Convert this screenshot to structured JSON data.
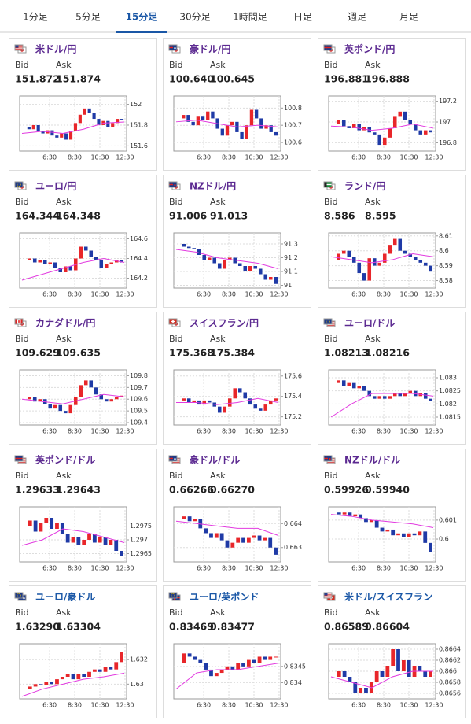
{
  "tabs": [
    "1分足",
    "5分足",
    "15分足",
    "30分足",
    "1時間足",
    "日足",
    "週足",
    "月足"
  ],
  "active_tab": 2,
  "cards": [
    {
      "name": "米ドル/円",
      "flags": [
        "us",
        "jp"
      ],
      "color": "#5c2a91",
      "bid_label": "Bid",
      "ask_label": "Ask",
      "bid": "151.872",
      "ask": "151.874",
      "chart": {
        "type": "candlestick",
        "ylim": [
          151.55,
          152.08
        ],
        "yticks": [
          152,
          151.8,
          151.6
        ],
        "xticks": [
          "6:30",
          "8:30",
          "10:30",
          "12:30"
        ],
        "close": [
          151.78,
          151.76,
          151.8,
          151.74,
          151.72,
          151.75,
          151.7,
          151.68,
          151.72,
          151.66,
          151.74,
          151.82,
          151.9,
          151.96,
          151.92,
          151.86,
          151.8,
          151.84,
          151.78,
          151.82,
          151.86,
          151.85
        ],
        "ma": [
          151.72,
          151.74,
          151.72,
          151.76,
          151.82,
          151.83
        ]
      }
    },
    {
      "name": "豪ドル/円",
      "flags": [
        "au",
        "jp"
      ],
      "color": "#5c2a91",
      "bid_label": "Bid",
      "ask_label": "Ask",
      "bid": "100.640",
      "ask": "100.645",
      "chart": {
        "type": "candlestick",
        "ylim": [
          100.55,
          100.87
        ],
        "yticks": [
          100.8,
          100.7,
          100.6
        ],
        "xticks": [
          "6:30",
          "8:30",
          "10:30",
          "12:30"
        ],
        "close": [
          100.74,
          100.76,
          100.72,
          100.7,
          100.75,
          100.73,
          100.78,
          100.74,
          100.68,
          100.64,
          100.7,
          100.72,
          100.66,
          100.62,
          100.7,
          100.79,
          100.74,
          100.68,
          100.7,
          100.66,
          100.64
        ],
        "ma": [
          100.72,
          100.73,
          100.71,
          100.69,
          100.7,
          100.69
        ]
      }
    },
    {
      "name": "英ポンド/円",
      "flags": [
        "gb",
        "jp"
      ],
      "color": "#5c2a91",
      "bid_label": "Bid",
      "ask_label": "Ask",
      "bid": "196.881",
      "ask": "196.888",
      "chart": {
        "type": "candlestick",
        "ylim": [
          196.72,
          197.25
        ],
        "yticks": [
          197.2,
          197,
          196.8
        ],
        "xticks": [
          "6:30",
          "8:30",
          "10:30",
          "12:30"
        ],
        "close": [
          196.98,
          197.02,
          196.96,
          196.94,
          196.98,
          196.92,
          196.95,
          196.9,
          196.88,
          196.78,
          196.85,
          196.94,
          197.05,
          197.1,
          197.02,
          196.98,
          196.92,
          196.88,
          196.92,
          196.9
        ],
        "ma": [
          196.96,
          196.95,
          196.92,
          196.94,
          196.98,
          196.94
        ]
      }
    },
    {
      "name": "ユーロ/円",
      "flags": [
        "eu",
        "jp"
      ],
      "color": "#5c2a91",
      "bid_label": "Bid",
      "ask_label": "Ask",
      "bid": "164.344",
      "ask": "164.348",
      "chart": {
        "type": "candlestick",
        "ylim": [
          164.1,
          164.66
        ],
        "yticks": [
          164.6,
          164.4,
          164.2
        ],
        "xticks": [
          "6:30",
          "8:30",
          "10:30",
          "12:30"
        ],
        "close": [
          164.38,
          164.4,
          164.36,
          164.38,
          164.34,
          164.36,
          164.3,
          164.26,
          164.32,
          164.28,
          164.4,
          164.52,
          164.48,
          164.42,
          164.38,
          164.3,
          164.34,
          164.36,
          164.38,
          164.36
        ],
        "ma": [
          164.18,
          164.24,
          164.3,
          164.36,
          164.4,
          164.36
        ]
      }
    },
    {
      "name": "NZドル/円",
      "flags": [
        "nz",
        "jp"
      ],
      "color": "#5c2a91",
      "bid_label": "Bid",
      "ask_label": "Ask",
      "bid": "91.006",
      "ask": "91.013",
      "chart": {
        "type": "candlestick",
        "ylim": [
          90.98,
          91.38
        ],
        "yticks": [
          91.3,
          91.2,
          91.1,
          91
        ],
        "xticks": [
          "6:30",
          "8:30",
          "10:30",
          "12:30"
        ],
        "close": [
          91.3,
          91.28,
          91.27,
          91.26,
          91.22,
          91.18,
          91.2,
          91.16,
          91.12,
          91.18,
          91.2,
          91.16,
          91.14,
          91.1,
          91.14,
          91.12,
          91.08,
          91.04,
          91.06,
          91.01
        ],
        "ma": [
          91.26,
          91.24,
          91.2,
          91.18,
          91.16,
          91.12
        ]
      }
    },
    {
      "name": "ランド/円",
      "flags": [
        "za",
        "jp"
      ],
      "color": "#5c2a91",
      "bid_label": "Bid",
      "ask_label": "Ask",
      "bid": "8.586",
      "ask": "8.595",
      "chart": {
        "type": "candlestick",
        "ylim": [
          8.575,
          8.612
        ],
        "yticks": [
          8.61,
          8.6,
          8.59,
          8.58
        ],
        "xticks": [
          "6:30",
          "8:30",
          "10:30",
          "12:30"
        ],
        "close": [
          8.594,
          8.598,
          8.6,
          8.596,
          8.592,
          8.585,
          8.58,
          8.595,
          8.59,
          8.592,
          8.598,
          8.604,
          8.608,
          8.6,
          8.598,
          8.596,
          8.594,
          8.592,
          8.59,
          8.586
        ],
        "ma": [
          8.596,
          8.594,
          8.592,
          8.594,
          8.598,
          8.596
        ]
      }
    },
    {
      "name": "カナダドル/円",
      "flags": [
        "ca",
        "jp"
      ],
      "color": "#5c2a91",
      "bid_label": "Bid",
      "ask_label": "Ask",
      "bid": "109.629",
      "ask": "109.635",
      "chart": {
        "type": "candlestick",
        "ylim": [
          109.38,
          109.85
        ],
        "yticks": [
          109.8,
          109.7,
          109.6,
          109.5,
          109.4
        ],
        "xticks": [
          "6:30",
          "8:30",
          "10:30",
          "12:30"
        ],
        "close": [
          109.6,
          109.62,
          109.58,
          109.6,
          109.56,
          109.52,
          109.55,
          109.5,
          109.48,
          109.55,
          109.62,
          109.72,
          109.76,
          109.7,
          109.64,
          109.6,
          109.58,
          109.6,
          109.62,
          109.63
        ],
        "ma": [
          109.6,
          109.58,
          109.56,
          109.6,
          109.64,
          109.62
        ]
      }
    },
    {
      "name": "スイスフラン/円",
      "flags": [
        "ch",
        "jp"
      ],
      "color": "#5c2a91",
      "bid_label": "Bid",
      "ask_label": "Ask",
      "bid": "175.368",
      "ask": "175.384",
      "chart": {
        "type": "candlestick",
        "ylim": [
          175.12,
          175.66
        ],
        "yticks": [
          175.6,
          175.4,
          175.2
        ],
        "xticks": [
          "6:30",
          "8:30",
          "10:30",
          "12:30"
        ],
        "close": [
          175.36,
          175.38,
          175.34,
          175.36,
          175.32,
          175.36,
          175.34,
          175.3,
          175.24,
          175.3,
          175.38,
          175.48,
          175.44,
          175.38,
          175.32,
          175.28,
          175.26,
          175.32,
          175.36,
          175.38
        ],
        "ma": [
          175.34,
          175.34,
          175.32,
          175.34,
          175.38,
          175.34
        ]
      }
    },
    {
      "name": "ユーロ/ドル",
      "flags": [
        "eu",
        "us"
      ],
      "color": "#5c2a91",
      "bid_label": "Bid",
      "ask_label": "Ask",
      "bid": "1.08213",
      "ask": "1.08216",
      "chart": {
        "type": "candlestick",
        "ylim": [
          1.0812,
          1.0833
        ],
        "yticks": [
          1.083,
          1.0825,
          1.082,
          1.0815
        ],
        "xticks": [
          "6:30",
          "8:30",
          "10:30",
          "12:30"
        ],
        "close": [
          1.0828,
          1.0829,
          1.0827,
          1.0828,
          1.0826,
          1.0827,
          1.0825,
          1.0823,
          1.0822,
          1.0823,
          1.0822,
          1.0823,
          1.0824,
          1.0823,
          1.0824,
          1.0825,
          1.0823,
          1.0824,
          1.0822,
          1.0821
        ],
        "ma": [
          1.0815,
          1.082,
          1.0824,
          1.0824,
          1.0824,
          1.0823
        ]
      }
    },
    {
      "name": "英ポンド/ドル",
      "flags": [
        "gb",
        "us"
      ],
      "color": "#5c2a91",
      "bid_label": "Bid",
      "ask_label": "Ask",
      "bid": "1.29633",
      "ask": "1.29643",
      "chart": {
        "type": "candlestick",
        "ylim": [
          1.2962,
          1.2982
        ],
        "yticks": [
          1.2975,
          1.297,
          1.2965
        ],
        "xticks": [
          "6:30",
          "8:30",
          "10:30",
          "12:30"
        ],
        "close": [
          1.2975,
          1.2977,
          1.2973,
          1.2976,
          1.2978,
          1.2974,
          1.2976,
          1.2972,
          1.2969,
          1.2971,
          1.2968,
          1.297,
          1.2972,
          1.2969,
          1.2971,
          1.2968,
          1.297,
          1.2966,
          1.2964
        ],
        "ma": [
          1.2968,
          1.297,
          1.2974,
          1.2973,
          1.2971,
          1.2969
        ]
      }
    },
    {
      "name": "豪ドル/ドル",
      "flags": [
        "au",
        "us"
      ],
      "color": "#5c2a91",
      "bid_label": "Bid",
      "ask_label": "Ask",
      "bid": "0.66266",
      "ask": "0.66270",
      "chart": {
        "type": "candlestick",
        "ylim": [
          0.6624,
          0.6647
        ],
        "yticks": [
          0.664,
          0.663
        ],
        "xticks": [
          "6:30",
          "8:30",
          "10:30",
          "12:30"
        ],
        "close": [
          0.6642,
          0.6643,
          0.6641,
          0.6642,
          0.6638,
          0.6636,
          0.6634,
          0.6636,
          0.6633,
          0.663,
          0.6632,
          0.6634,
          0.6632,
          0.6634,
          0.6635,
          0.6633,
          0.6634,
          0.663,
          0.6627
        ],
        "ma": [
          0.6641,
          0.664,
          0.6639,
          0.6638,
          0.6638,
          0.6635
        ]
      }
    },
    {
      "name": "NZドル/ドル",
      "flags": [
        "nz",
        "us"
      ],
      "color": "#5c2a91",
      "bid_label": "Bid",
      "ask_label": "Ask",
      "bid": "0.59926",
      "ask": "0.59940",
      "chart": {
        "type": "candlestick",
        "ylim": [
          0.5988,
          0.6017
        ],
        "yticks": [
          0.601,
          0.6
        ],
        "xticks": [
          "6:30",
          "8:30",
          "10:30",
          "12:30"
        ],
        "close": [
          0.6014,
          0.6013,
          0.6014,
          0.6012,
          0.6013,
          0.6011,
          0.6009,
          0.601,
          0.6006,
          0.6004,
          0.6005,
          0.6002,
          0.6003,
          0.6001,
          0.6003,
          0.6002,
          0.6004,
          0.5998,
          0.5993
        ],
        "ma": [
          0.6013,
          0.6012,
          0.601,
          0.6009,
          0.6008,
          0.6006
        ]
      }
    },
    {
      "name": "ユーロ/豪ドル",
      "flags": [
        "eu",
        "au"
      ],
      "color": "#1a57a6",
      "bid_label": "Bid",
      "ask_label": "Ask",
      "bid": "1.63290",
      "ask": "1.63304",
      "chart": {
        "type": "candlestick",
        "ylim": [
          1.6288,
          1.6333
        ],
        "yticks": [
          1.632,
          1.63
        ],
        "xticks": [
          "6:30",
          "8:30",
          "10:30",
          "12:30"
        ],
        "close": [
          1.6296,
          1.6298,
          1.63,
          1.6299,
          1.6302,
          1.63,
          1.6304,
          1.6306,
          1.6308,
          1.6304,
          1.6308,
          1.6306,
          1.631,
          1.6312,
          1.631,
          1.6314,
          1.6312,
          1.6318,
          1.6326
        ],
        "ma": [
          1.629,
          1.6296,
          1.63,
          1.6304,
          1.6306,
          1.6309
        ]
      }
    },
    {
      "name": "ユーロ/英ポンド",
      "flags": [
        "eu",
        "gb"
      ],
      "color": "#1a57a6",
      "bid_label": "Bid",
      "ask_label": "Ask",
      "bid": "0.83469",
      "ask": "0.83477",
      "chart": {
        "type": "candlestick",
        "ylim": [
          0.8335,
          0.8352
        ],
        "yticks": [
          0.8345,
          0.834
        ],
        "xticks": [
          "6:30",
          "8:30",
          "10:30",
          "12:30"
        ],
        "close": [
          0.8346,
          0.8349,
          0.8348,
          0.8347,
          0.8346,
          0.8344,
          0.8342,
          0.8343,
          0.8344,
          0.8345,
          0.8344,
          0.8346,
          0.8345,
          0.8347,
          0.8346,
          0.8348,
          0.8347,
          0.8348,
          0.8348
        ],
        "ma": [
          0.8338,
          0.8343,
          0.8344,
          0.8344,
          0.8345,
          0.8346
        ]
      }
    },
    {
      "name": "米ドル/スイスフラン",
      "flags": [
        "us",
        "ch"
      ],
      "color": "#1a57a6",
      "bid_label": "Bid",
      "ask_label": "Ask",
      "bid": "0.86589",
      "ask": "0.86604",
      "chart": {
        "type": "candlestick",
        "ylim": [
          0.8655,
          0.8665
        ],
        "yticks": [
          0.8664,
          0.8662,
          0.866,
          0.8658,
          0.8656
        ],
        "xticks": [
          "6:30",
          "8:30",
          "10:30",
          "12:30"
        ],
        "close": [
          0.8659,
          0.866,
          0.8659,
          0.8658,
          0.8656,
          0.8657,
          0.8656,
          0.8658,
          0.866,
          0.8659,
          0.8661,
          0.8664,
          0.866,
          0.8662,
          0.8659,
          0.8661,
          0.866,
          0.8659,
          0.866
        ],
        "ma": [
          0.8659,
          0.8658,
          0.8657,
          0.8659,
          0.866,
          0.866
        ]
      }
    }
  ]
}
